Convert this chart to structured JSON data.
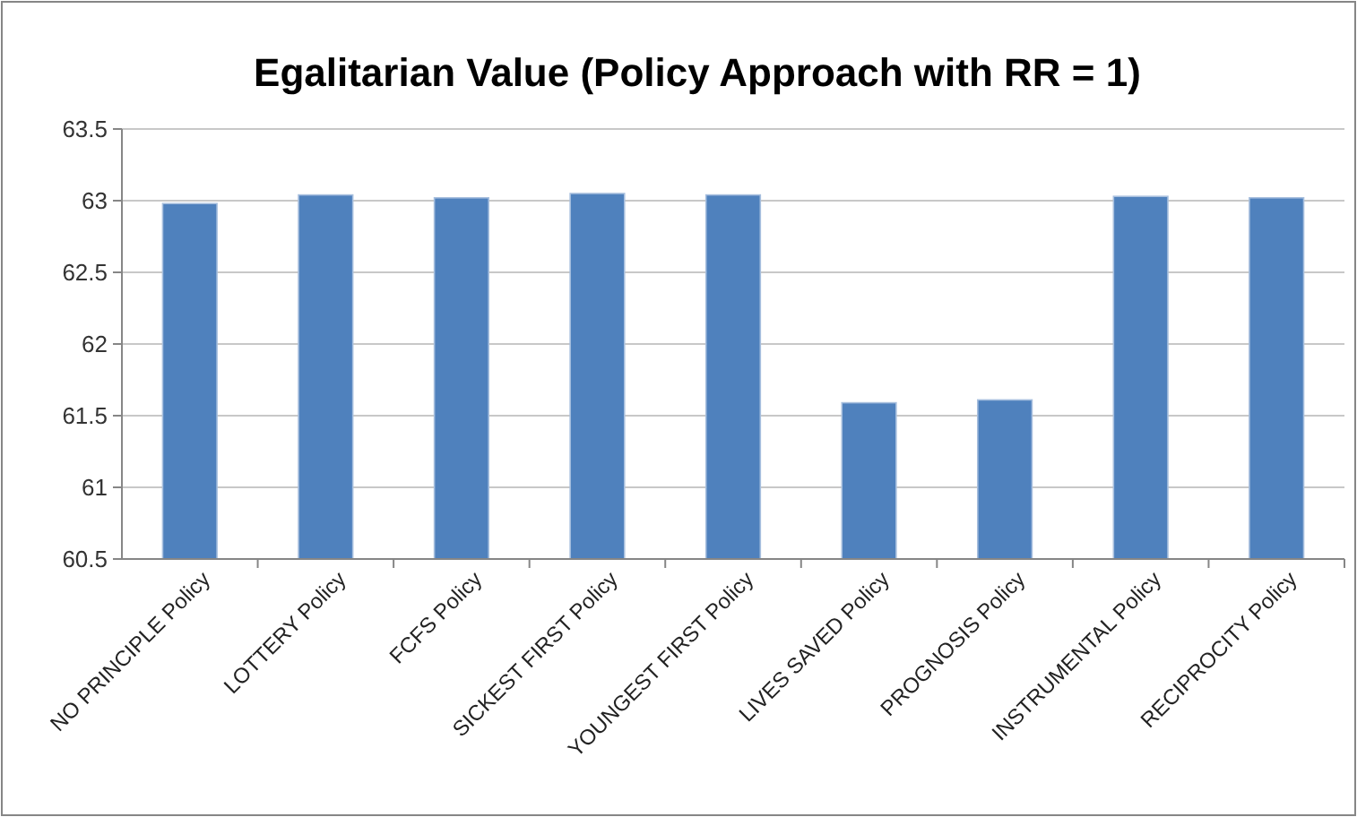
{
  "chart_data": {
    "type": "bar",
    "title": "Egalitarian Value (Policy Approach with RR = 1)",
    "categories": [
      "NO PRINCIPLE Policy",
      "LOTTERY Policy",
      "FCFS Policy",
      "SICKEST FIRST Policy",
      "YOUNGEST FIRST Policy",
      "LIVES SAVED Policy",
      "PROGNOSIS Policy",
      "INSTRUMENTAL Policy",
      "RECIPROCITY Policy"
    ],
    "values": [
      62.98,
      63.04,
      63.02,
      63.05,
      63.04,
      61.59,
      61.61,
      63.03,
      63.02
    ],
    "color": "#4f81bd",
    "ylim": [
      60.5,
      63.5
    ],
    "yticks": [
      {
        "value": 60.5,
        "label": "60.5"
      },
      {
        "value": 61,
        "label": "61"
      },
      {
        "value": 61.5,
        "label": "61.5"
      },
      {
        "value": 62,
        "label": "62"
      },
      {
        "value": 62.5,
        "label": "62.5"
      },
      {
        "value": 63,
        "label": "63"
      },
      {
        "value": 63.5,
        "label": "63.5"
      }
    ],
    "grid": "y"
  }
}
